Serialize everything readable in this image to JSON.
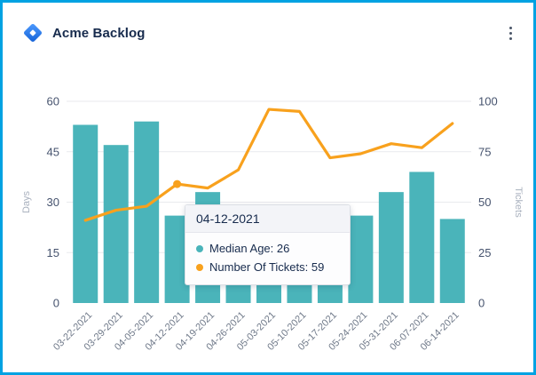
{
  "header": {
    "title": "Acme Backlog"
  },
  "chart_data": {
    "type": "bar+line combo",
    "categories": [
      "03-22-2021",
      "03-29-2021",
      "04-05-2021",
      "04-12-2021",
      "04-19-2021",
      "04-26-2021",
      "05-03-2021",
      "05-10-2021",
      "05-17-2021",
      "05-24-2021",
      "05-31-2021",
      "06-07-2021",
      "06-14-2021"
    ],
    "series": [
      {
        "name": "Median Age",
        "type": "bar",
        "axis": "left",
        "color": "#4AB4BA",
        "values": [
          53,
          47,
          54,
          26,
          33,
          20,
          12,
          14,
          18,
          26,
          33,
          39,
          25
        ]
      },
      {
        "name": "Number Of Tickets",
        "type": "line",
        "axis": "right",
        "color": "#F8A11D",
        "values": [
          41,
          46,
          48,
          59,
          57,
          66,
          96,
          95,
          72,
          74,
          79,
          77,
          89
        ]
      }
    ],
    "left_axis": {
      "label": "Days",
      "ticks": [
        0,
        15,
        30,
        45,
        60
      ],
      "min": 0,
      "max": 60
    },
    "right_axis": {
      "label": "Tickets",
      "ticks": [
        0,
        25,
        50,
        75,
        100
      ],
      "min": 0,
      "max": 100
    },
    "grid": true,
    "legend_position": "none",
    "highlight_index": 3
  },
  "tooltip": {
    "date": "04-12-2021",
    "items": [
      {
        "text": "Median Age: 26",
        "marker_color": "#4AB4BA"
      },
      {
        "text": "Number Of Tickets: 59",
        "marker_color": "#F8A11D"
      }
    ]
  },
  "colors": {
    "frame_border": "#00A2E2",
    "bar": "#4AB4BA",
    "line": "#F8A11D",
    "gridline": "#E9EAEE",
    "y_tick_text": "#46536E",
    "x_tick_text": "#707A8A",
    "axis_title_text": "#A9B1BE",
    "title_text": "#172B4D"
  }
}
